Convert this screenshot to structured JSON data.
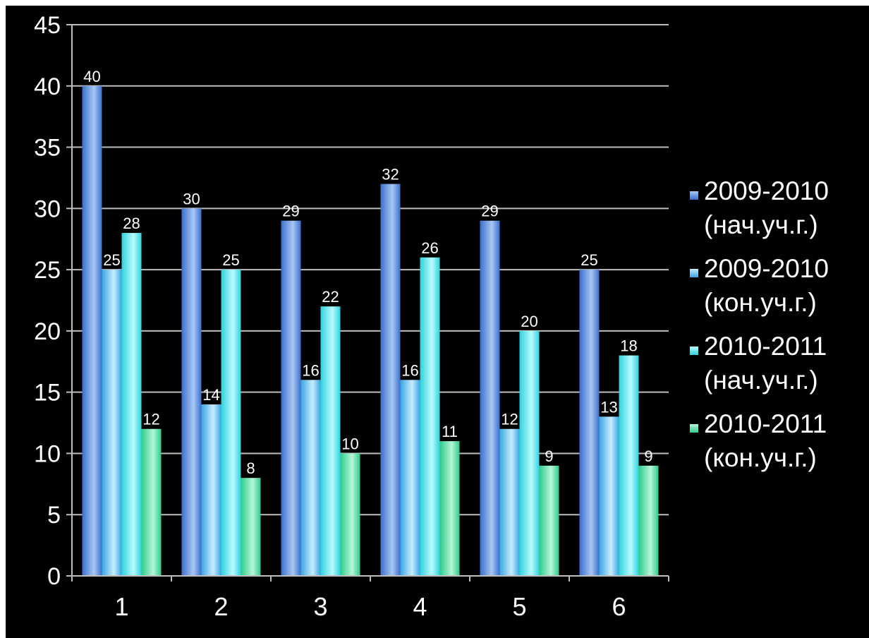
{
  "chart_data": {
    "type": "bar",
    "title": "",
    "xlabel": "",
    "ylabel": "",
    "ylim": [
      0,
      45
    ],
    "ytick_step": 5,
    "categories": [
      "1",
      "2",
      "3",
      "4",
      "5",
      "6"
    ],
    "grid": true,
    "legend_position": "right",
    "series": [
      {
        "name_line1": "2009-2010",
        "name_line2": "(нач.уч.г.)",
        "color_light": "#a9c8f2",
        "color_dark": "#3a6fce",
        "values": [
          40,
          30,
          29,
          32,
          29,
          25
        ]
      },
      {
        "name_line1": "2009-2010",
        "name_line2": "(кон.уч.г.)",
        "color_light": "#c8ecff",
        "color_dark": "#3aa6e2",
        "values": [
          25,
          14,
          16,
          16,
          12,
          13
        ]
      },
      {
        "name_line1": "2010-2011",
        "name_line2": "(нач.уч.г.)",
        "color_light": "#b9fbff",
        "color_dark": "#2fd2dc",
        "values": [
          28,
          25,
          22,
          26,
          20,
          18
        ]
      },
      {
        "name_line1": "2010-2011",
        "name_line2": "(кон.уч.г.)",
        "color_light": "#b6f7d8",
        "color_dark": "#2ecb8a",
        "values": [
          12,
          8,
          10,
          11,
          9,
          9
        ]
      }
    ]
  }
}
